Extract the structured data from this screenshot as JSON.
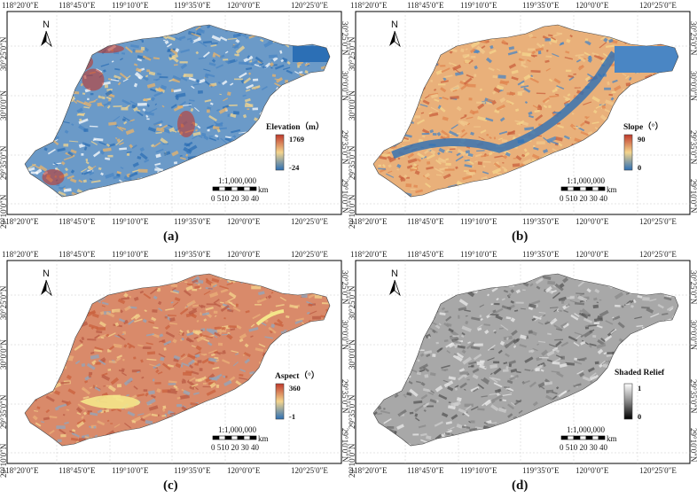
{
  "panels": [
    {
      "label": "(a)",
      "map_layer": "elevation",
      "legend": {
        "title": "Elevation（m）",
        "max": "1769",
        "min": "-24",
        "colors": [
          "#c0392b",
          "#f4d58d",
          "#2c6fb5"
        ]
      },
      "scale": {
        "ratio": "1:1,000,000",
        "unit": "km",
        "ticks": "0 510 20 30 40"
      },
      "north": "N"
    },
    {
      "label": "(b)",
      "map_layer": "slope",
      "legend": {
        "title": "Slope（°）",
        "max": "90",
        "min": "0",
        "colors": [
          "#c0392b",
          "#f4d58d",
          "#2c6fb5"
        ]
      },
      "scale": {
        "ratio": "1:1,000,000",
        "unit": "km",
        "ticks": "0 510 20 30 40"
      },
      "north": "N"
    },
    {
      "label": "(c)",
      "map_layer": "aspect",
      "legend": {
        "title": "Aspect（°）",
        "max": "360",
        "min": "-1",
        "colors": [
          "#c0392b",
          "#f4d58d",
          "#2c6fb5"
        ]
      },
      "scale": {
        "ratio": "1:1,000,000",
        "unit": "km",
        "ticks": "0 510 20 30 40"
      },
      "north": "N"
    },
    {
      "label": "(d)",
      "map_layer": "shaded-relief",
      "legend": {
        "title": "Shaded Relief",
        "max": "1",
        "min": "0",
        "colors": [
          "#ffffff",
          "#888888",
          "#000000"
        ]
      },
      "scale": {
        "ratio": "1:1,000,000",
        "unit": "km",
        "ticks": "0 510 20 30 40"
      },
      "north": "N"
    }
  ],
  "coords": {
    "longitudes": [
      "118°20′0″E",
      "118°45′0″E",
      "119°10′0″E",
      "119°35′0″E",
      "120°0′0″E",
      "120°25′0″E"
    ],
    "latitudes": [
      "30°25′0″N",
      "30°0′0″N",
      "29°35′0″N",
      "29°10′0″N"
    ]
  }
}
